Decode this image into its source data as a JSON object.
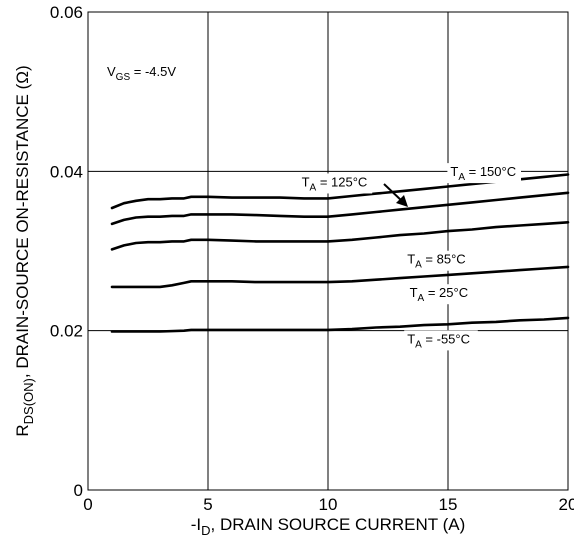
{
  "chart_data": {
    "type": "line",
    "xlabel": {
      "prefix": "-I",
      "sub": "D",
      "suffix": ", DRAIN SOURCE CURRENT (A)"
    },
    "ylabel": {
      "prefix": "R",
      "sub": "DS(ON)",
      "suffix": ", DRAIN-SOURCE ON-RESISTANCE (Ω)"
    },
    "xlim": [
      0,
      20
    ],
    "ylim": [
      0,
      0.06
    ],
    "xticks": [
      0,
      5,
      10,
      15,
      20
    ],
    "yticks": [
      {
        "value": 0,
        "label": "0"
      },
      {
        "value": 0.02,
        "label": "0.02"
      },
      {
        "value": 0.04,
        "label": "0.04"
      },
      {
        "value": 0.06,
        "label": "0.06"
      }
    ],
    "grid": true,
    "condition": {
      "prefix": "V",
      "sub": "GS",
      "suffix": " = -4.5V"
    },
    "series": [
      {
        "name": "T_A = 150°C",
        "x": [
          1,
          1.5,
          2,
          2.5,
          3,
          3.5,
          4,
          4.3,
          5,
          6,
          7,
          8,
          9,
          10,
          11,
          12,
          13,
          14,
          15,
          16,
          17,
          18,
          19,
          20
        ],
        "y": [
          0.0354,
          0.036,
          0.0363,
          0.0365,
          0.0365,
          0.0366,
          0.0366,
          0.0368,
          0.0368,
          0.0367,
          0.0367,
          0.0367,
          0.0366,
          0.0366,
          0.0369,
          0.0372,
          0.0375,
          0.0378,
          0.0381,
          0.0384,
          0.0387,
          0.039,
          0.0393,
          0.0396
        ]
      },
      {
        "name": "T_A = 125°C",
        "x": [
          1,
          1.5,
          2,
          2.5,
          3,
          3.5,
          4,
          4.3,
          5,
          6,
          7,
          8,
          9,
          10,
          11,
          12,
          13,
          14,
          15,
          16,
          17,
          18,
          19,
          20
        ],
        "y": [
          0.0334,
          0.0339,
          0.0342,
          0.0343,
          0.0343,
          0.0344,
          0.0344,
          0.0346,
          0.0346,
          0.0346,
          0.0345,
          0.0344,
          0.0343,
          0.0343,
          0.0346,
          0.0349,
          0.0352,
          0.0355,
          0.0358,
          0.0361,
          0.0364,
          0.0367,
          0.037,
          0.0373
        ]
      },
      {
        "name": "T_A = 85°C",
        "x": [
          1,
          1.5,
          2,
          2.5,
          3,
          3.5,
          4,
          4.3,
          5,
          6,
          7,
          8,
          9,
          10,
          11,
          12,
          13,
          14,
          15,
          16,
          17,
          18,
          19,
          20
        ],
        "y": [
          0.0302,
          0.0307,
          0.031,
          0.0311,
          0.0311,
          0.0312,
          0.0312,
          0.0314,
          0.0314,
          0.0313,
          0.0312,
          0.0312,
          0.0312,
          0.0312,
          0.0314,
          0.0317,
          0.032,
          0.0322,
          0.0325,
          0.0327,
          0.033,
          0.0332,
          0.0334,
          0.0336
        ]
      },
      {
        "name": "T_A = 25°C",
        "x": [
          1,
          2,
          3,
          3.5,
          4,
          4.3,
          5,
          6,
          7,
          8,
          9,
          10,
          11,
          12,
          13,
          14,
          15,
          16,
          17,
          18,
          19,
          20
        ],
        "y": [
          0.0255,
          0.0255,
          0.0255,
          0.0257,
          0.026,
          0.0262,
          0.0262,
          0.0262,
          0.0261,
          0.0261,
          0.0261,
          0.0261,
          0.0262,
          0.0264,
          0.0266,
          0.0268,
          0.027,
          0.0272,
          0.0274,
          0.0276,
          0.0278,
          0.028
        ]
      },
      {
        "name": "T_A = -55°C",
        "x": [
          1,
          2,
          3,
          4,
          4.3,
          5,
          6,
          7,
          8,
          9,
          10,
          11,
          12,
          13,
          14,
          15,
          16,
          17,
          18,
          19,
          20
        ],
        "y": [
          0.0199,
          0.0199,
          0.0199,
          0.02,
          0.0201,
          0.0201,
          0.0201,
          0.0201,
          0.0201,
          0.0201,
          0.0201,
          0.0202,
          0.0204,
          0.0205,
          0.0207,
          0.0208,
          0.021,
          0.0211,
          0.0213,
          0.0214,
          0.0216
        ]
      }
    ],
    "annotations": [
      {
        "prefix": "T",
        "sub": "A",
        "suffix": " = 150°C",
        "x": 15.1,
        "y": 0.0394
      },
      {
        "prefix": "T",
        "sub": "A",
        "suffix": " = 125°C",
        "x": 8.9,
        "y": 0.0381
      },
      {
        "prefix": "T",
        "sub": "A",
        "suffix": " = 85°C",
        "x": 13.3,
        "y": 0.0284
      },
      {
        "prefix": "T",
        "sub": "A",
        "suffix": " = 25°C",
        "x": 13.4,
        "y": 0.0242
      },
      {
        "prefix": "T",
        "sub": "A",
        "suffix": " = -55°C",
        "x": 13.3,
        "y": 0.0184
      }
    ]
  }
}
